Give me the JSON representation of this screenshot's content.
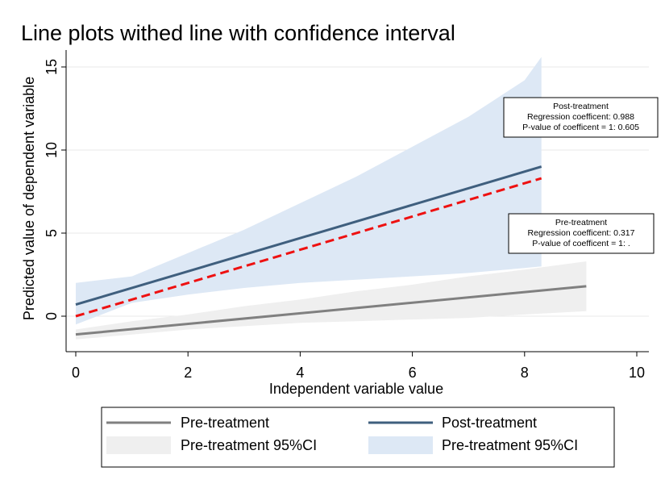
{
  "chart_data": {
    "type": "line",
    "title": "Line plots withed line with confidence interval",
    "xlabel": "Independent variable value",
    "ylabel": "Predicted value of dependent variable",
    "xlim": [
      0,
      10
    ],
    "ylim": [
      -2,
      15.5
    ],
    "xticks": [
      0,
      2,
      4,
      6,
      8,
      10
    ],
    "yticks": [
      0,
      5,
      10,
      15
    ],
    "grid": true,
    "legend_position": "bottom",
    "colors": {
      "pre_line": "#808080",
      "pre_band": "#efefef",
      "post_line": "#3f5f7e",
      "post_band": "#dde8f5",
      "reference_line": "#ee1111"
    },
    "series": [
      {
        "name": "Pre-treatment",
        "kind": "line",
        "color": "#808080",
        "x": [
          0,
          9.1
        ],
        "y": [
          -1.1,
          1.8
        ]
      },
      {
        "name": "Pre-treatment 95%CI",
        "kind": "band",
        "color": "#efefef",
        "x": [
          0,
          1,
          2,
          3,
          4,
          5,
          6,
          7,
          8,
          9.1
        ],
        "lower": [
          -1.4,
          -1.1,
          -0.8,
          -0.6,
          -0.4,
          -0.3,
          -0.2,
          -0.1,
          0.1,
          0.3
        ],
        "upper": [
          -0.8,
          -0.3,
          0.1,
          0.6,
          1.0,
          1.5,
          1.9,
          2.4,
          2.8,
          3.3
        ]
      },
      {
        "name": "Post-treatment",
        "kind": "line",
        "color": "#3f5f7e",
        "x": [
          0,
          8.3
        ],
        "y": [
          0.7,
          9.0
        ]
      },
      {
        "name": "Pre-treatment 95%CI",
        "kind": "band",
        "color": "#dde8f5",
        "x": [
          0,
          1,
          2,
          3,
          4,
          5,
          6,
          7,
          8,
          8.3
        ],
        "lower": [
          -0.5,
          0.8,
          1.3,
          1.7,
          2.0,
          2.2,
          2.4,
          2.6,
          2.9,
          3.0
        ],
        "upper": [
          2.0,
          2.4,
          3.8,
          5.2,
          6.8,
          8.4,
          10.2,
          12.0,
          14.2,
          15.6
        ]
      },
      {
        "name": "",
        "kind": "dashed",
        "color": "#ee1111",
        "x": [
          0,
          8.3
        ],
        "y": [
          0.0,
          8.3
        ]
      }
    ],
    "annotations": [
      {
        "lines": [
          "Post-treatment",
          "Regression coefficent: 0.988",
          "P-value of coefficent = 1: 0.605"
        ]
      },
      {
        "lines": [
          "Pre-treatment",
          "Regression coefficent: 0.317",
          "P-value of coefficent = 1: ."
        ]
      }
    ],
    "legend": [
      {
        "label": "Pre-treatment",
        "kind": "line",
        "color": "#808080"
      },
      {
        "label": "Post-treatment",
        "kind": "line",
        "color": "#3f5f7e"
      },
      {
        "label": "Pre-treatment 95%CI",
        "kind": "band",
        "color": "#efefef"
      },
      {
        "label": "Pre-treatment 95%CI",
        "kind": "band",
        "color": "#dde8f5"
      }
    ]
  }
}
